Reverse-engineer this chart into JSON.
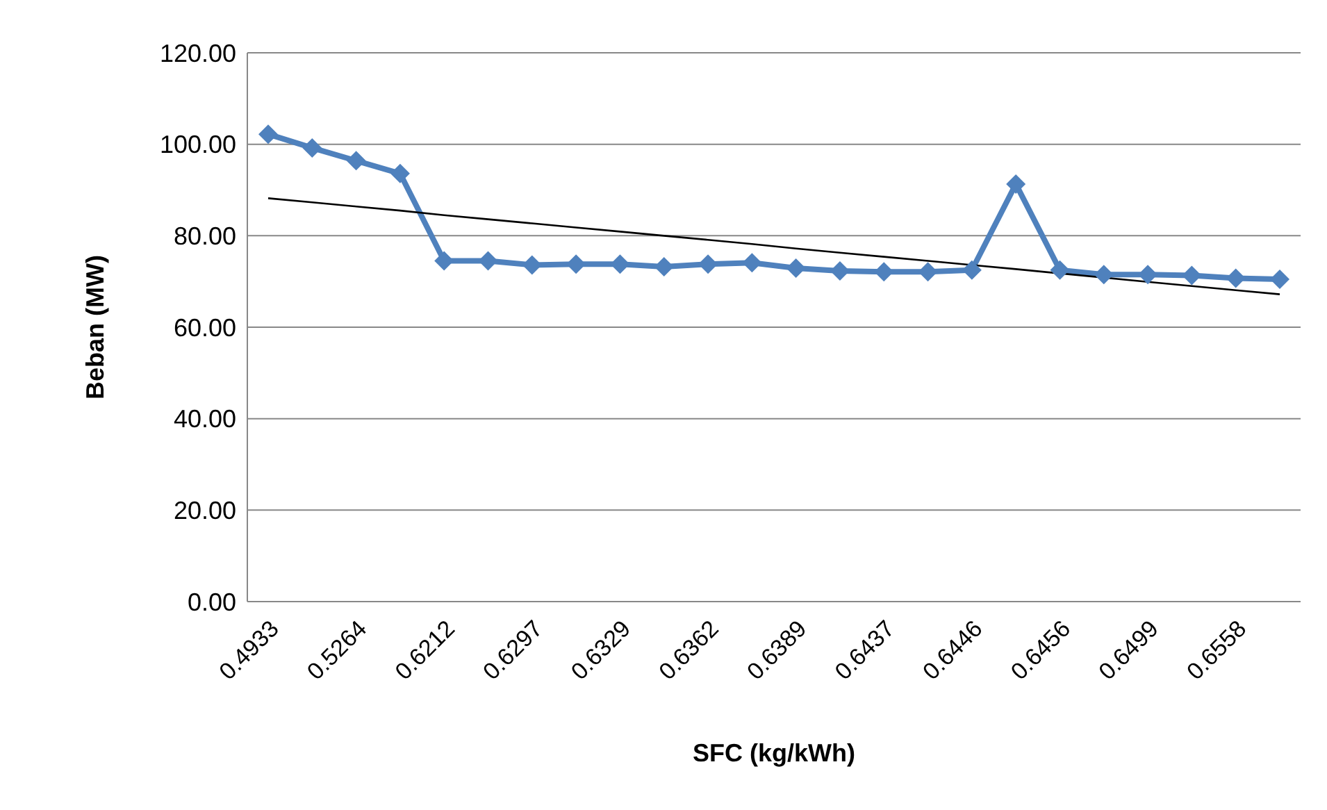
{
  "chart_data": {
    "type": "line",
    "xlabel": "SFC (kg/kWh)",
    "ylabel": "Beban (MW)",
    "categories": [
      "0.4933",
      null,
      "0.5264",
      null,
      "0.6212",
      null,
      "0.6297",
      null,
      "0.6329",
      null,
      "0.6362",
      null,
      "0.6389",
      null,
      "0.6437",
      null,
      "0.6446",
      null,
      "0.6456",
      null,
      "0.6499",
      null,
      "0.6558",
      null
    ],
    "series": [
      {
        "color": "#4f81bd",
        "marker": "diamond",
        "values": [
          102.2,
          99.2,
          96.4,
          93.6,
          74.5,
          74.5,
          73.6,
          73.8,
          73.8,
          73.2,
          73.8,
          74.1,
          72.9,
          72.3,
          72.1,
          72.1,
          72.5,
          91.3,
          72.5,
          71.5,
          71.5,
          71.3,
          70.7,
          70.5
        ]
      },
      {
        "type": "line",
        "color": "#000000",
        "marker": "none",
        "values": [
          88.2,
          87.3,
          86.4,
          85.5,
          84.5,
          83.6,
          82.7,
          81.8,
          80.9,
          80.0,
          79.1,
          78.2,
          77.2,
          76.3,
          75.4,
          74.5,
          73.6,
          72.7,
          null,
          null,
          69.9,
          69.0,
          68.1,
          67.2
        ]
      }
    ],
    "ylim": [
      0,
      120
    ],
    "yticks": [
      {
        "value": 0,
        "label": "0.00"
      },
      {
        "value": 20,
        "label": "20.00"
      },
      {
        "value": 40,
        "label": "40.00"
      },
      {
        "value": 60,
        "label": "60.00"
      },
      {
        "value": 80,
        "label": "80.00"
      },
      {
        "value": 100,
        "label": "100.00"
      },
      {
        "value": 120,
        "label": "120.00"
      }
    ],
    "grid": "y",
    "legend": false
  }
}
